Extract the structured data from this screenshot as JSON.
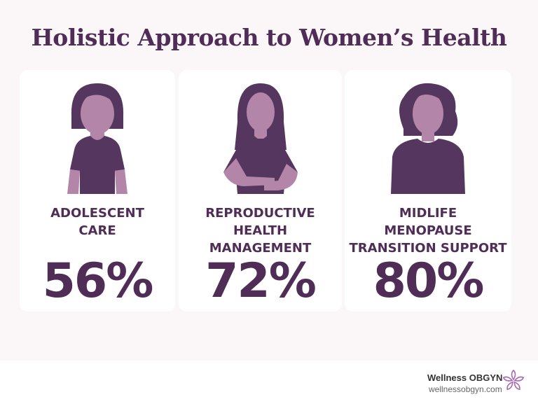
{
  "title": "Holistic Approach to Women’s Health",
  "colors": {
    "primary": "#4f2d57",
    "skin": "#b385a8",
    "background": "#fbf6f7"
  },
  "cards": [
    {
      "label": "ADOLESCENT CARE",
      "label_lines": [
        "ADOLESCENT",
        "CARE"
      ],
      "percent": "56%",
      "icon": "adolescent-girl-icon"
    },
    {
      "label": "REPRODUCTIVE HEALTH MANAGEMENT",
      "label_lines": [
        "REPRODUCTIVE",
        "HEALTH",
        "MANAGEMENT"
      ],
      "percent": "72%",
      "icon": "woman-hands-on-abdomen-icon"
    },
    {
      "label": "MIDLIFE MENOPAUSE TRANSITION SUPPORT",
      "label_lines": [
        "MIDLIFE",
        "MENOPAUSE",
        "TRANSITION SUPPORT"
      ],
      "percent": "80%",
      "icon": "midlife-woman-icon"
    }
  ],
  "footer": {
    "brand": "Wellness OBGYN",
    "url": "wellnessobgyn.com",
    "logo_icon": "flower-icon"
  }
}
